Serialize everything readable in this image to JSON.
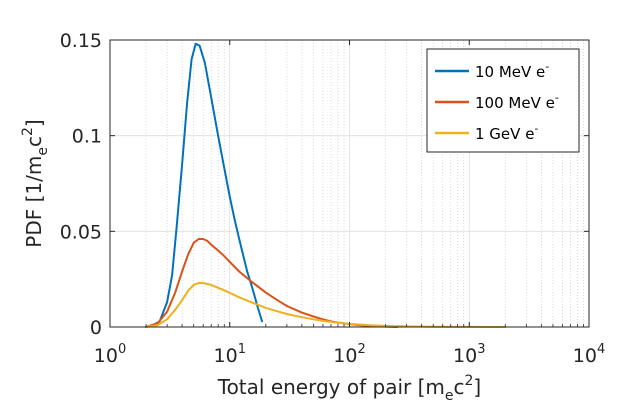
{
  "chart_data": {
    "type": "line",
    "xscale": "log",
    "xlim": [
      1,
      10000
    ],
    "ylim": [
      0,
      0.15
    ],
    "grid": true,
    "legend_position": "top-right",
    "xlabel": {
      "base": "Total energy of pair [m",
      "sub": "e",
      "mid": "c",
      "sup": "2",
      "end": "]"
    },
    "ylabel": {
      "base": "PDF [1/m",
      "sub": "e",
      "mid": "c",
      "sup": "2",
      "end": "]"
    },
    "x_ticks": [
      {
        "base": "10",
        "exp": "0"
      },
      {
        "base": "10",
        "exp": "1"
      },
      {
        "base": "10",
        "exp": "2"
      },
      {
        "base": "10",
        "exp": "3"
      },
      {
        "base": "10",
        "exp": "4"
      }
    ],
    "x_tick_values": [
      1,
      10,
      100,
      1000,
      10000
    ],
    "y_ticks": [
      "0",
      "0.05",
      "0.1",
      "0.15"
    ],
    "y_tick_values": [
      0,
      0.05,
      0.1,
      0.15
    ],
    "series": [
      {
        "name": "10 MeV e",
        "name_sup": "-",
        "color": "#0072BD",
        "x": [
          2,
          2.3,
          2.6,
          3,
          3.3,
          3.6,
          4,
          4.4,
          4.8,
          5.2,
          5.6,
          6.2,
          7,
          8,
          9,
          10,
          11,
          12,
          13,
          14,
          15,
          16,
          17,
          18,
          18.6
        ],
        "y": [
          0,
          0.001,
          0.003,
          0.013,
          0.027,
          0.052,
          0.085,
          0.117,
          0.14,
          0.148,
          0.147,
          0.138,
          0.12,
          0.1,
          0.083,
          0.068,
          0.056,
          0.046,
          0.037,
          0.029,
          0.023,
          0.017,
          0.011,
          0.006,
          0.003
        ]
      },
      {
        "name": "100 MeV e",
        "name_sup": "-",
        "color": "#D95319",
        "x": [
          2,
          2.5,
          3,
          3.5,
          4,
          4.5,
          5,
          5.5,
          6,
          6.5,
          7,
          8,
          9,
          10,
          12,
          15,
          20,
          25,
          30,
          40,
          50,
          60,
          70,
          80,
          100,
          120,
          150,
          200,
          250
        ],
        "y": [
          0,
          0.002,
          0.008,
          0.018,
          0.029,
          0.038,
          0.044,
          0.046,
          0.046,
          0.045,
          0.043,
          0.04,
          0.037,
          0.034,
          0.029,
          0.024,
          0.018,
          0.014,
          0.011,
          0.0075,
          0.0055,
          0.004,
          0.003,
          0.0023,
          0.0015,
          0.001,
          0.0006,
          0.0002,
          0
        ]
      },
      {
        "name": "1 GeV e",
        "name_sup": "-",
        "color": "#EDB120",
        "x": [
          2,
          2.5,
          3,
          3.5,
          4,
          4.5,
          5,
          5.5,
          6,
          7,
          8,
          9,
          10,
          12,
          15,
          20,
          25,
          30,
          40,
          50,
          60,
          80,
          100,
          150,
          200,
          300,
          500,
          700,
          1000,
          1500,
          2000
        ],
        "y": [
          0,
          0.001,
          0.004,
          0.009,
          0.014,
          0.019,
          0.022,
          0.023,
          0.023,
          0.022,
          0.0205,
          0.0192,
          0.0178,
          0.0155,
          0.013,
          0.01,
          0.0082,
          0.0068,
          0.0051,
          0.004,
          0.0032,
          0.0022,
          0.0016,
          0.0009,
          0.0006,
          0.0003,
          0.00013,
          6e-05,
          3e-05,
          1e-05,
          0
        ]
      }
    ]
  }
}
